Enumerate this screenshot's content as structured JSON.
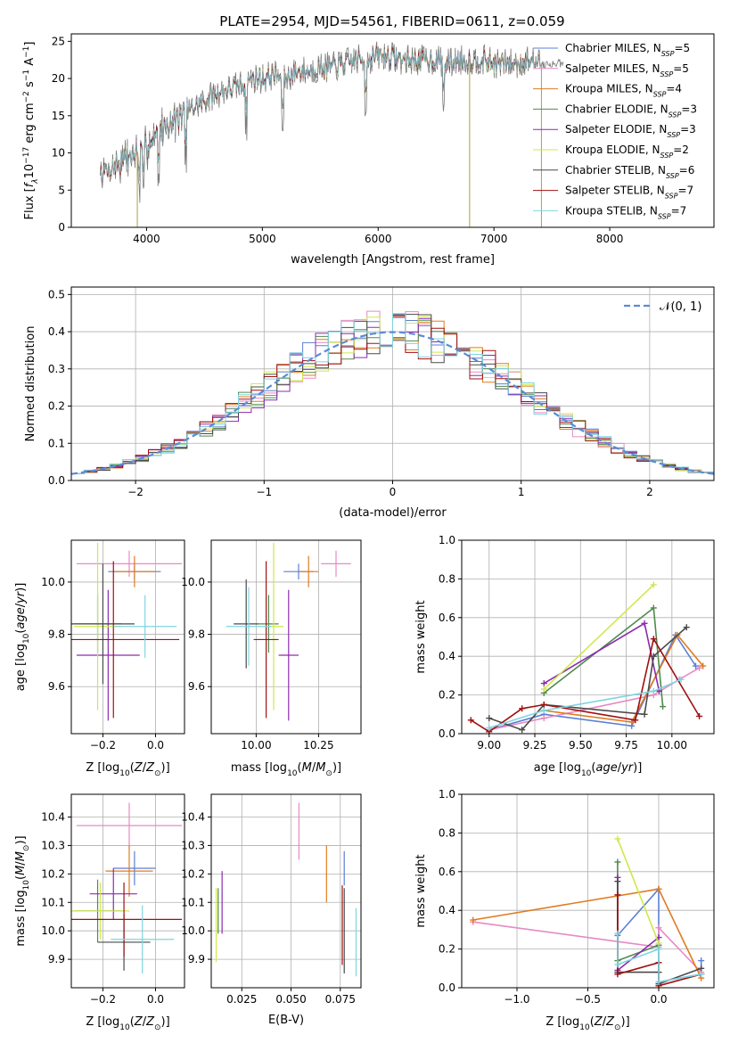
{
  "figure": {
    "suptitle": "PLATE=2954, MJD=54561, FIBERID=0611, z=0.059"
  },
  "series_legend": [
    {
      "name": "Chabrier MILES, N_SSP=5",
      "base": "Chabrier MILES, N",
      "sub": "SSP",
      "tail": "=5",
      "color": "#5b7fd6"
    },
    {
      "name": "Salpeter MILES, N_SSP=5",
      "base": "Salpeter MILES, N",
      "sub": "SSP",
      "tail": "=5",
      "color": "#e68ac4"
    },
    {
      "name": "Kroupa MILES, N_SSP=4",
      "base": "Kroupa MILES, N",
      "sub": "SSP",
      "tail": "=4",
      "color": "#e07b1f"
    },
    {
      "name": "Chabrier ELODIE, N_SSP=3",
      "base": "Chabrier ELODIE, N",
      "sub": "SSP",
      "tail": "=3",
      "color": "#4f8a4f"
    },
    {
      "name": "Salpeter ELODIE, N_SSP=3",
      "base": "Salpeter ELODIE, N",
      "sub": "SSP",
      "tail": "=3",
      "color": "#8c2bb0"
    },
    {
      "name": "Kroupa ELODIE, N_SSP=2",
      "base": "Kroupa ELODIE, N",
      "sub": "SSP",
      "tail": "=2",
      "color": "#cfe84a"
    },
    {
      "name": "Chabrier STELIB, N_SSP=6",
      "base": "Chabrier STELIB, N",
      "sub": "SSP",
      "tail": "=6",
      "color": "#4a4a4a"
    },
    {
      "name": "Salpeter STELIB, N_SSP=7",
      "base": "Salpeter STELIB, N",
      "sub": "SSP",
      "tail": "=7",
      "color": "#a01010"
    },
    {
      "name": "Kroupa STELIB, N_SSP=7",
      "base": "Kroupa STELIB, N",
      "sub": "SSP",
      "tail": "=7",
      "color": "#7fd4df"
    }
  ],
  "chart_data": [
    {
      "id": "spectrum",
      "type": "line",
      "xlabel": "wavelength [Angstrom, rest frame]",
      "ylabel": "Flux [f_λ 10^-17 erg cm^-2 s^-1 A^-1]",
      "xlim": [
        3350,
        8900
      ],
      "ylim": [
        0,
        26
      ],
      "xticks": [
        4000,
        5000,
        6000,
        7000,
        8000
      ],
      "yticks": [
        0,
        5,
        10,
        15,
        20,
        25
      ],
      "grid": false,
      "legend_position": "right",
      "spectrum_control_points": {
        "x": [
          3600,
          3700,
          3800,
          3900,
          4000,
          4100,
          4200,
          4300,
          4400,
          4500,
          4600,
          4700,
          4800,
          4900,
          5000,
          5100,
          5200,
          5300,
          5400,
          5500,
          5600,
          5700,
          5800,
          5900,
          6000,
          6100,
          6200,
          6300,
          6400,
          6500,
          6600,
          6700,
          6800,
          6900,
          7000,
          7100,
          7200,
          7300,
          7400
        ],
        "y": [
          7,
          8,
          9,
          10,
          11,
          13,
          14,
          15,
          16,
          17,
          18,
          18.5,
          19,
          20,
          20,
          20.5,
          20,
          21,
          21,
          21.5,
          21.5,
          22,
          22.5,
          22.5,
          23,
          23,
          22.5,
          22.5,
          22.5,
          22.5,
          22,
          22.5,
          22.5,
          22.5,
          22,
          22,
          22,
          22.5,
          22
        ]
      },
      "spikes": [
        {
          "x": 3920,
          "y": 0
        },
        {
          "x": 6790,
          "y": 0
        },
        {
          "x": 7410,
          "y": 0
        }
      ]
    },
    {
      "id": "residuals",
      "type": "histogram",
      "xlabel": "(data-model)/error",
      "ylabel": "Normed distribution",
      "xlim": [
        -2.5,
        2.5
      ],
      "ylim": [
        0,
        0.52
      ],
      "xticks": [
        -2,
        -1,
        0,
        1,
        2
      ],
      "yticks": [
        0.0,
        0.1,
        0.2,
        0.3,
        0.4,
        0.5
      ],
      "grid": true,
      "bin_width": 0.1,
      "reference_curve": {
        "name": "N(0,1)",
        "mu": 0,
        "sigma": 1,
        "color": "#5b8bd6"
      },
      "legend_position": "top-right"
    },
    {
      "id": "age_vs_Z",
      "type": "errorbar",
      "xlabel": "Z [log10(Z/Z_sun)]",
      "ylabel": "age  [log10(age/yr)]",
      "xlim": [
        -0.32,
        0.11
      ],
      "ylim": [
        9.42,
        10.16
      ],
      "xticks": [
        -0.2,
        0.0
      ],
      "yticks": [
        9.6,
        9.8,
        10.0
      ],
      "grid": true,
      "points": [
        {
          "x": -0.08,
          "y": 10.04,
          "xerr": 0.1,
          "yerr": 0.03
        },
        {
          "x": -0.1,
          "y": 10.07,
          "xerr": 0.2,
          "yerr": 0.05
        },
        {
          "x": -0.08,
          "y": 10.04,
          "xerr": 0.08,
          "yerr": 0.06
        },
        {
          "x": -0.22,
          "y": 9.84,
          "xerr": 0.09,
          "yerr": 0.11
        },
        {
          "x": -0.18,
          "y": 9.72,
          "xerr": 0.12,
          "yerr": 0.25
        },
        {
          "x": -0.22,
          "y": 9.83,
          "xerr": 0.09,
          "yerr": 0.32
        },
        {
          "x": -0.2,
          "y": 9.84,
          "xerr": 0.12,
          "yerr": 0.23
        },
        {
          "x": -0.16,
          "y": 9.78,
          "xerr": 0.25,
          "yerr": 0.3
        },
        {
          "x": -0.04,
          "y": 9.83,
          "xerr": 0.12,
          "yerr": 0.12
        }
      ]
    },
    {
      "id": "age_vs_mass",
      "type": "errorbar",
      "xlabel": "mass [log10(M/M_sun)]",
      "ylabel": "",
      "xlim": [
        9.82,
        10.42
      ],
      "ylim": [
        9.42,
        10.16
      ],
      "xticks": [
        10.0,
        10.25
      ],
      "yticks": [
        9.6,
        9.8,
        10.0
      ],
      "grid": true,
      "points": [
        {
          "x": 10.17,
          "y": 10.04,
          "xerr": 0.06,
          "yerr": 0.03
        },
        {
          "x": 10.32,
          "y": 10.07,
          "xerr": 0.06,
          "yerr": 0.05
        },
        {
          "x": 10.21,
          "y": 10.04,
          "xerr": 0.04,
          "yerr": 0.06
        },
        {
          "x": 10.05,
          "y": 9.84,
          "xerr": 0.04,
          "yerr": 0.11
        },
        {
          "x": 10.13,
          "y": 9.72,
          "xerr": 0.04,
          "yerr": 0.25
        },
        {
          "x": 10.07,
          "y": 9.83,
          "xerr": 0.04,
          "yerr": 0.32
        },
        {
          "x": 9.96,
          "y": 9.84,
          "xerr": 0.05,
          "yerr": 0.17
        },
        {
          "x": 10.04,
          "y": 9.78,
          "xerr": 0.05,
          "yerr": 0.3
        },
        {
          "x": 9.97,
          "y": 9.83,
          "xerr": 0.09,
          "yerr": 0.15
        }
      ]
    },
    {
      "id": "weight_vs_age",
      "type": "line",
      "xlabel": "age  [log10(age/yr)]",
      "ylabel": "mass weight",
      "xlim": [
        8.85,
        10.23
      ],
      "ylim": [
        0,
        1.0
      ],
      "xticks": [
        9.0,
        9.25,
        9.5,
        9.75,
        10.0
      ],
      "yticks": [
        0.0,
        0.2,
        0.4,
        0.6,
        0.8,
        1.0
      ],
      "grid": true,
      "series": [
        {
          "x": [
            9.0,
            9.3,
            9.78,
            10.02,
            10.13
          ],
          "y": [
            0.02,
            0.1,
            0.04,
            0.51,
            0.35
          ]
        },
        {
          "x": [
            9.0,
            9.3,
            9.9,
            10.04,
            10.15
          ],
          "y": [
            0.02,
            0.08,
            0.2,
            0.28,
            0.34
          ]
        },
        {
          "x": [
            9.3,
            9.78,
            10.03,
            10.17
          ],
          "y": [
            0.12,
            0.06,
            0.51,
            0.35
          ]
        },
        {
          "x": [
            9.3,
            9.9,
            9.95
          ],
          "y": [
            0.21,
            0.65,
            0.14
          ]
        },
        {
          "x": [
            9.3,
            9.85,
            9.93
          ],
          "y": [
            0.26,
            0.57,
            0.22
          ]
        },
        {
          "x": [
            9.3,
            9.9
          ],
          "y": [
            0.23,
            0.77
          ]
        },
        {
          "x": [
            9.0,
            9.18,
            9.3,
            9.85,
            9.9,
            10.08
          ],
          "y": [
            0.08,
            0.02,
            0.15,
            0.1,
            0.4,
            0.55
          ]
        },
        {
          "x": [
            8.9,
            9.0,
            9.18,
            9.3,
            9.8,
            9.9,
            10.15
          ],
          "y": [
            0.07,
            0.01,
            0.13,
            0.15,
            0.07,
            0.49,
            0.09
          ]
        },
        {
          "x": [
            9.0,
            9.3,
            9.9,
            10.05
          ],
          "y": [
            0.03,
            0.12,
            0.22,
            0.28
          ]
        }
      ]
    },
    {
      "id": "mass_vs_Z",
      "type": "errorbar",
      "xlabel": "Z [log10(Z/Z_sun)]",
      "ylabel": "mass [log10(M/M_sun)]",
      "xlim": [
        -0.32,
        0.11
      ],
      "ylim": [
        9.8,
        10.48
      ],
      "xticks": [
        -0.2,
        0.0
      ],
      "yticks": [
        9.9,
        10.0,
        10.1,
        10.2,
        10.3,
        10.4
      ],
      "grid": true,
      "points": [
        {
          "x": -0.08,
          "y": 10.22,
          "xerr": 0.08,
          "yerr": 0.06
        },
        {
          "x": -0.1,
          "y": 10.37,
          "xerr": 0.2,
          "yerr": 0.08
        },
        {
          "x": -0.1,
          "y": 10.21,
          "xerr": 0.09,
          "yerr": 0.09
        },
        {
          "x": -0.22,
          "y": 10.07,
          "xerr": 0.09,
          "yerr": 0.11
        },
        {
          "x": -0.16,
          "y": 10.13,
          "xerr": 0.09,
          "yerr": 0.09
        },
        {
          "x": -0.21,
          "y": 10.07,
          "xerr": 0.11,
          "yerr": 0.1
        },
        {
          "x": -0.12,
          "y": 9.96,
          "xerr": 0.1,
          "yerr": 0.1
        },
        {
          "x": -0.12,
          "y": 10.04,
          "xerr": 0.22,
          "yerr": 0.13
        },
        {
          "x": -0.05,
          "y": 9.97,
          "xerr": 0.12,
          "yerr": 0.12
        }
      ]
    },
    {
      "id": "mass_vs_ebv",
      "type": "errorbar",
      "xlabel": "E(B-V)",
      "ylabel": "",
      "xlim": [
        0.0095,
        0.0855
      ],
      "ylim": [
        9.8,
        10.48
      ],
      "xticks": [
        0.025,
        0.05,
        0.075
      ],
      "xtick_labels": [
        "0.025",
        "0.050",
        "0.075"
      ],
      "yticks": [
        9.9,
        10.0,
        10.1,
        10.2,
        10.3,
        10.4
      ],
      "grid": true,
      "points": [
        {
          "x": 0.077,
          "y": 10.22,
          "yerr": 0.06
        },
        {
          "x": 0.054,
          "y": 10.35,
          "yerr": 0.1
        },
        {
          "x": 0.068,
          "y": 10.2,
          "yerr": 0.1
        },
        {
          "x": 0.013,
          "y": 10.07,
          "yerr": 0.08
        },
        {
          "x": 0.015,
          "y": 10.1,
          "yerr": 0.11
        },
        {
          "x": 0.012,
          "y": 10.02,
          "yerr": 0.13
        },
        {
          "x": 0.077,
          "y": 10.0,
          "yerr": 0.15
        },
        {
          "x": 0.076,
          "y": 10.02,
          "yerr": 0.14
        },
        {
          "x": 0.083,
          "y": 9.96,
          "yerr": 0.12
        }
      ]
    },
    {
      "id": "weight_vs_Z",
      "type": "line",
      "xlabel": "Z [log10(Z/Z_sun)]",
      "ylabel": "mass weight",
      "xlim": [
        -1.39,
        0.39
      ],
      "ylim": [
        0,
        1.0
      ],
      "xticks": [
        -1.0,
        -0.5,
        0.0
      ],
      "yticks": [
        0.0,
        0.2,
        0.4,
        0.6,
        0.8,
        1.0
      ],
      "grid": true,
      "series": [
        {
          "x": [
            -0.29,
            0.0,
            0.0,
            0.3,
            0.3
          ],
          "y": [
            0.27,
            0.51,
            0.03,
            0.07,
            0.14
          ]
        },
        {
          "x": [
            -1.31,
            0.0,
            0.0,
            0.3
          ],
          "y": [
            0.34,
            0.21,
            0.31,
            0.08
          ]
        },
        {
          "x": [
            -1.31,
            0.0,
            0.3
          ],
          "y": [
            0.35,
            0.51,
            0.05
          ]
        },
        {
          "x": [
            -0.29,
            -0.29,
            0.0
          ],
          "y": [
            0.65,
            0.14,
            0.22
          ]
        },
        {
          "x": [
            -0.29,
            -0.29,
            0.0
          ],
          "y": [
            0.57,
            0.09,
            0.26
          ]
        },
        {
          "x": [
            -0.29,
            0.0
          ],
          "y": [
            0.77,
            0.23
          ]
        },
        {
          "x": [
            -0.29,
            -0.29,
            0.0,
            0.0,
            0.3
          ],
          "y": [
            0.55,
            0.08,
            0.08,
            0.02,
            0.1
          ]
        },
        {
          "x": [
            -0.29,
            -0.29,
            0.0,
            0.0,
            0.3
          ],
          "y": [
            0.48,
            0.07,
            0.13,
            0.01,
            0.07
          ]
        },
        {
          "x": [
            -0.29,
            -0.29,
            0.0,
            0.0,
            0.3
          ],
          "y": [
            0.28,
            0.12,
            0.2,
            0.03,
            0.07
          ]
        }
      ]
    }
  ]
}
